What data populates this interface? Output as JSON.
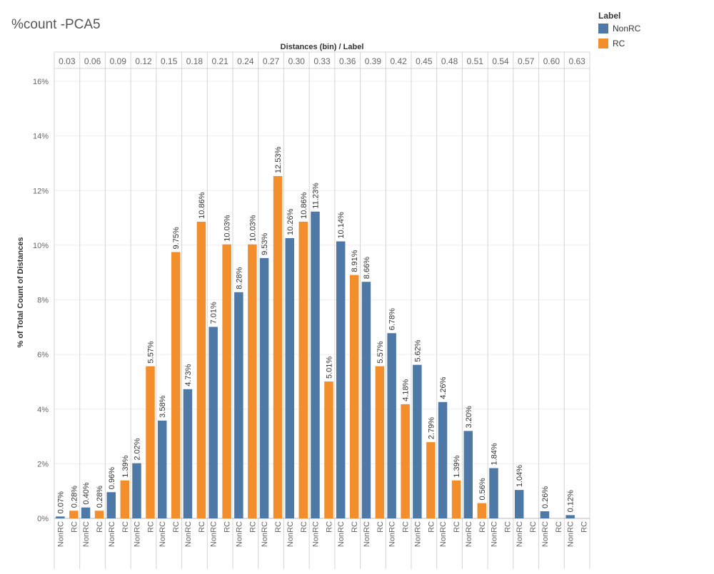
{
  "chart_data": {
    "type": "bar",
    "title": "%count -PCA5",
    "column_header": "Distances (bin)  /  Label",
    "ylabel": "% of Total Count of Distances",
    "ylim": [
      0,
      16
    ],
    "yticks": [
      0,
      2,
      4,
      6,
      8,
      10,
      12,
      14,
      16
    ],
    "ytick_labels": [
      "0%",
      "2%",
      "4%",
      "6%",
      "8%",
      "10%",
      "12%",
      "14%",
      "16%"
    ],
    "grid": true,
    "legend_position": "top-right",
    "legend_title": "Label",
    "categories": [
      "0.03",
      "0.06",
      "0.09",
      "0.12",
      "0.15",
      "0.18",
      "0.21",
      "0.24",
      "0.27",
      "0.30",
      "0.33",
      "0.36",
      "0.39",
      "0.42",
      "0.45",
      "0.48",
      "0.51",
      "0.54",
      "0.57",
      "0.60",
      "0.63"
    ],
    "series": [
      {
        "name": "NonRC",
        "color": "#4e79a7",
        "values": [
          0.07,
          0.4,
          0.96,
          2.02,
          3.58,
          4.73,
          7.01,
          8.28,
          9.53,
          10.26,
          11.23,
          10.14,
          8.66,
          6.78,
          5.62,
          4.26,
          3.2,
          1.84,
          1.04,
          0.26,
          0.12
        ],
        "labels": [
          "0.07%",
          "0.40%",
          "0.96%",
          "2.02%",
          "3.58%",
          "4.73%",
          "7.01%",
          "8.28%",
          "9.53%",
          "10.26%",
          "11.23%",
          "10.14%",
          "8.66%",
          "6.78%",
          "5.62%",
          "4.26%",
          "3.20%",
          "1.84%",
          "1.04%",
          "0.26%",
          "0.12%"
        ]
      },
      {
        "name": "RC",
        "color": "#f28e2b",
        "values": [
          0.28,
          0.28,
          1.39,
          5.57,
          9.75,
          10.86,
          10.03,
          10.03,
          12.53,
          10.86,
          5.01,
          8.91,
          5.57,
          4.18,
          2.79,
          1.39,
          0.56,
          null,
          null,
          null,
          null
        ],
        "labels": [
          "0.28%",
          "0.28%",
          "1.39%",
          "5.57%",
          "9.75%",
          "10.86%",
          "10.03%",
          "10.03%",
          "12.53%",
          "10.86%",
          "5.01%",
          "8.91%",
          "5.57%",
          "4.18%",
          "2.79%",
          "1.39%",
          "0.56%",
          "",
          "",
          "",
          ""
        ]
      }
    ]
  }
}
